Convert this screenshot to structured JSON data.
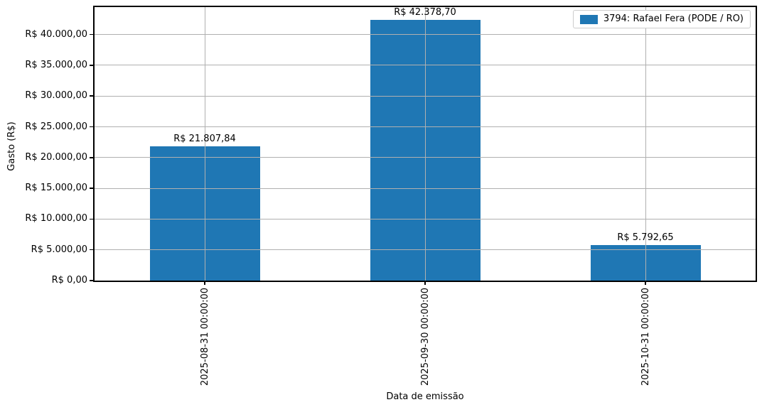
{
  "chart_data": {
    "type": "bar",
    "title": "",
    "xlabel": "Data de emissão",
    "ylabel": "Gasto (R$)",
    "categories": [
      "2025-08-31 00:00:00",
      "2025-09-30 00:00:00",
      "2025-10-31 00:00:00"
    ],
    "series": [
      {
        "name": "3794: Rafael Fera (PODE / RO)",
        "values": [
          21807.84,
          42378.7,
          5792.65
        ]
      }
    ],
    "value_labels": [
      "R$ 21.807,84",
      "R$ 42.378,70",
      "R$ 5.792,65"
    ],
    "y_ticks": [
      {
        "value": 0,
        "label": "R$ 0,00"
      },
      {
        "value": 5000,
        "label": "R$ 5.000,00"
      },
      {
        "value": 10000,
        "label": "R$ 10.000,00"
      },
      {
        "value": 15000,
        "label": "R$ 15.000,00"
      },
      {
        "value": 20000,
        "label": "R$ 20.000,00"
      },
      {
        "value": 25000,
        "label": "R$ 25.000,00"
      },
      {
        "value": 30000,
        "label": "R$ 30.000,00"
      },
      {
        "value": 35000,
        "label": "R$ 35.000,00"
      },
      {
        "value": 40000,
        "label": "R$ 40.000,00"
      }
    ],
    "ylim": [
      0,
      44460
    ],
    "grid": true,
    "grid_above_bars": true,
    "legend_position": "upper right",
    "bar_color": "#1f77b4",
    "grid_color": "#b0b0b0"
  }
}
